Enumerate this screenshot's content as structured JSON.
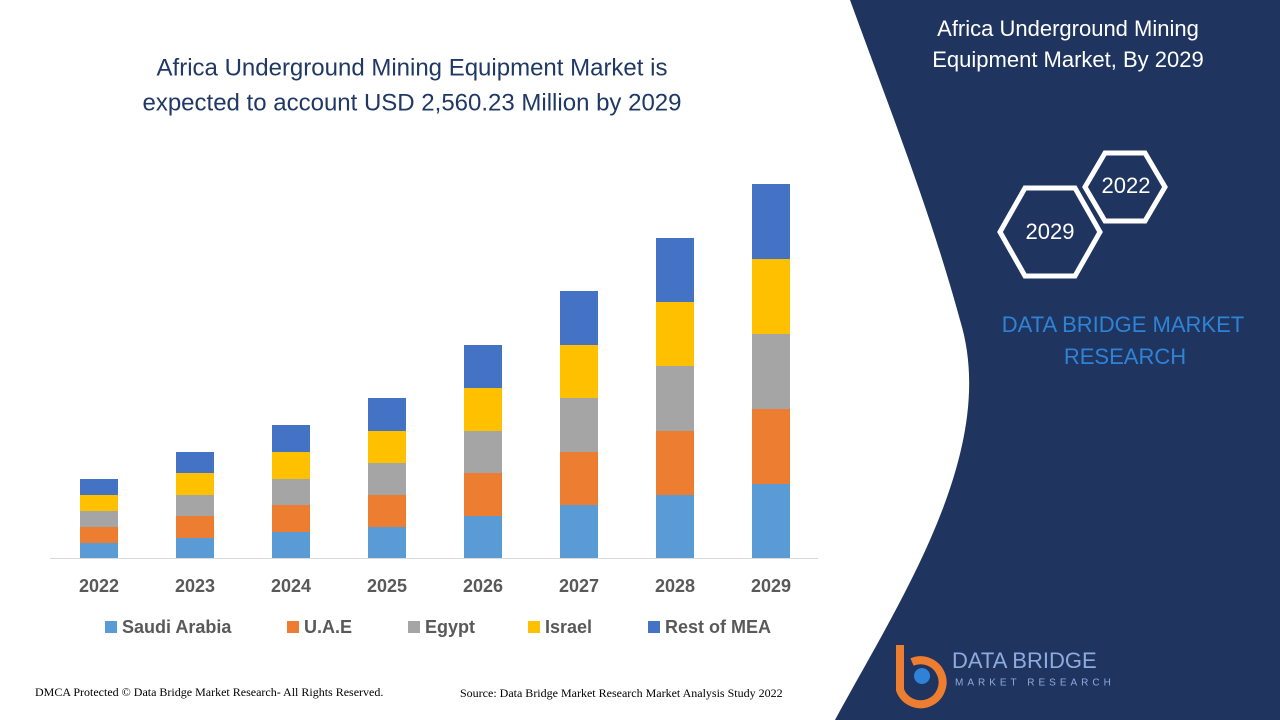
{
  "chart_data": {
    "type": "stacked_bar",
    "title": [
      "Africa Underground Mining Equipment Market is",
      "expected to account USD 2,560.23 Million by 2029"
    ],
    "categories": [
      "2022",
      "2023",
      "2024",
      "2025",
      "2026",
      "2027",
      "2028",
      "2029"
    ],
    "series": [
      {
        "name": "Saudi Arabia",
        "color": "#5b9bd5",
        "values": [
          15,
          20,
          26,
          31,
          42,
          53,
          63,
          74
        ]
      },
      {
        "name": "U.A.E",
        "color": "#ed7d31",
        "values": [
          16,
          22,
          27,
          32,
          43,
          53,
          64,
          75
        ]
      },
      {
        "name": "Egypt",
        "color": "#a5a5a5",
        "values": [
          16,
          21,
          26,
          32,
          42,
          54,
          65,
          75
        ]
      },
      {
        "name": "Israel",
        "color": "#ffc000",
        "values": [
          16,
          22,
          27,
          32,
          43,
          53,
          64,
          75
        ]
      },
      {
        "name": "Rest of MEA",
        "color": "#4472c4",
        "values": [
          16,
          21,
          27,
          33,
          43,
          54,
          64,
          75
        ]
      }
    ],
    "ylim": [
      0,
      374
    ],
    "legend": "bottom"
  },
  "side_panel": {
    "title": [
      "Africa Underground Mining",
      "Equipment Market, By 2029"
    ],
    "hex_labels": [
      "2022",
      "2029"
    ],
    "brand": [
      "DATA BRIDGE MARKET",
      "RESEARCH"
    ],
    "logo": [
      "DATA BRIDGE",
      "MARKET RESEARCH"
    ]
  },
  "footer": {
    "copyright": "DMCA Protected © Data Bridge Market Research- All Rights Reserved.",
    "source": "Source: Data Bridge Market Research Market Analysis Study 2022"
  }
}
